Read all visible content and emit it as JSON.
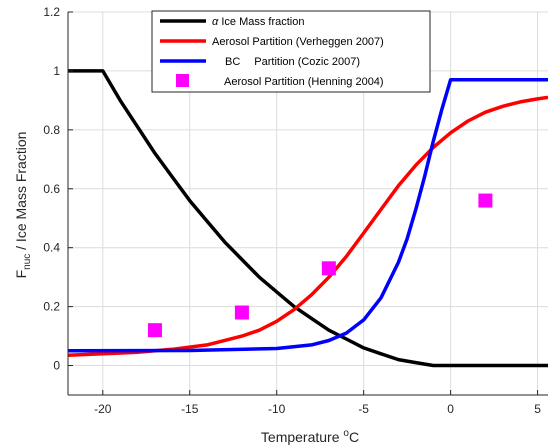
{
  "chart_data": {
    "type": "line",
    "xlabel": "Temperature",
    "xlabel_sup": "o",
    "xlabel_unit": "C",
    "ylabel_main": "F",
    "ylabel_sub": "nuc",
    "ylabel_rest": "  /  Ice Mass Fraction",
    "xlim": [
      -22,
      5.6
    ],
    "ylim": [
      -0.1,
      1.2
    ],
    "xticks": [
      -20,
      -15,
      -10,
      -5,
      0,
      5
    ],
    "yticks": [
      0,
      0.2,
      0.4,
      0.6,
      0.8,
      1,
      1.2
    ],
    "grid": true,
    "legend_position": "top-center",
    "series": [
      {
        "name": "α Ice Mass fraction",
        "legend_prefix": "α",
        "legend_label": " Ice Mass fraction",
        "color": "#000000",
        "kind": "line",
        "x": [
          -22,
          -20,
          -19,
          -18,
          -17,
          -16,
          -15,
          -14,
          -13,
          -12,
          -11,
          -10,
          -9,
          -8,
          -7,
          -6,
          -5,
          -4,
          -3,
          -2,
          -1,
          0,
          5.6
        ],
        "y": [
          1.0,
          1.0,
          0.9,
          0.81,
          0.72,
          0.64,
          0.56,
          0.49,
          0.42,
          0.36,
          0.3,
          0.25,
          0.2,
          0.16,
          0.12,
          0.09,
          0.06,
          0.04,
          0.02,
          0.01,
          0.0,
          0.0,
          0.0
        ]
      },
      {
        "name": "Aerosol Partition (Verheggen 2007)",
        "legend_label": "Aerosol Partition (Verheggen 2007)",
        "color": "#ff0000",
        "kind": "line",
        "x": [
          -22,
          -20,
          -18,
          -16,
          -14,
          -12,
          -11,
          -10,
          -9,
          -8,
          -7,
          -6,
          -5,
          -4,
          -3,
          -2,
          -1,
          0,
          1,
          2,
          3,
          4,
          5,
          5.6
        ],
        "y": [
          0.035,
          0.04,
          0.045,
          0.055,
          0.07,
          0.1,
          0.12,
          0.15,
          0.19,
          0.24,
          0.3,
          0.37,
          0.45,
          0.53,
          0.61,
          0.68,
          0.74,
          0.79,
          0.83,
          0.86,
          0.88,
          0.895,
          0.905,
          0.91
        ]
      },
      {
        "name": "BC Partition (Cozic 2007)",
        "legend_prefix": "BC",
        "legend_label": "Partition (Cozic 2007)",
        "color": "#0000ff",
        "kind": "line",
        "x": [
          -22,
          -15,
          -10,
          -8,
          -7,
          -6,
          -5,
          -4,
          -3,
          -2.5,
          -2,
          -1.5,
          -1,
          -0.5,
          0,
          5.6
        ],
        "y": [
          0.05,
          0.051,
          0.058,
          0.07,
          0.085,
          0.11,
          0.155,
          0.23,
          0.35,
          0.43,
          0.53,
          0.64,
          0.76,
          0.87,
          0.97,
          0.97
        ]
      },
      {
        "name": "Aerosol Partition (Henning 2004)",
        "legend_label": "Aerosol Partition (Henning 2004)",
        "color": "#ff00ff",
        "kind": "scatter",
        "x": [
          -17,
          -12,
          -7,
          2
        ],
        "y": [
          0.12,
          0.18,
          0.33,
          0.56
        ]
      }
    ]
  }
}
